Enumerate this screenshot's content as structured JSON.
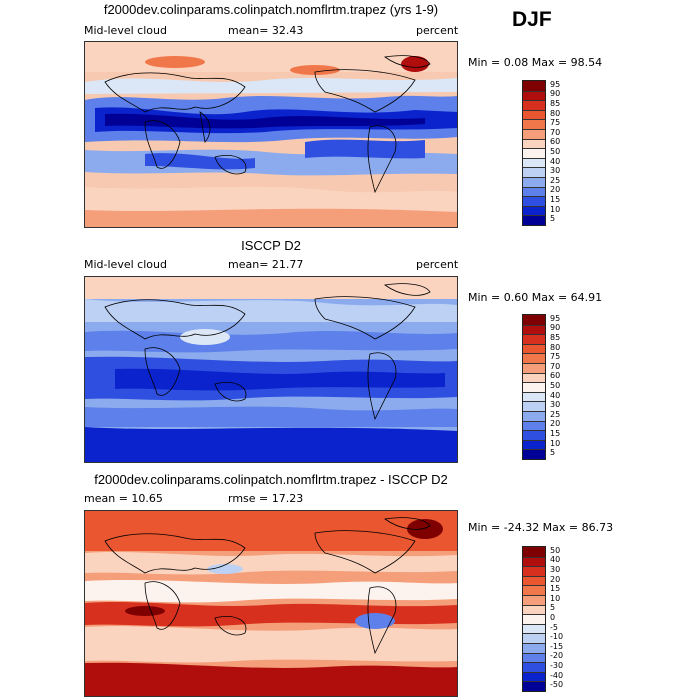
{
  "season": "DJF",
  "panels": [
    {
      "title": "f2000dev.colinparams.colinpatch.nomflrtm.trapez (yrs 1-9)",
      "left_label": "Mid-level cloud",
      "center_label": "mean=  32.43",
      "right_label": "percent",
      "minmax": "Min =   0.08  Max =  98.54",
      "colorbar_levels": [
        "95",
        "90",
        "85",
        "80",
        "75",
        "70",
        "60",
        "50",
        "40",
        "30",
        "25",
        "20",
        "15",
        "10",
        "5"
      ],
      "colorbar_colors": [
        "#7f0000",
        "#b00d0d",
        "#d8301e",
        "#e9562f",
        "#f0774a",
        "#f59e7a",
        "#fbd4c0",
        "#fdf3ee",
        "#dbe7f7",
        "#bcd1f4",
        "#8cabee",
        "#5d80ea",
        "#2f4fe0",
        "#0a23cc",
        "#000096"
      ]
    },
    {
      "title": "ISCCP D2",
      "left_label": "Mid-level cloud",
      "center_label": "mean=  21.77",
      "right_label": "percent",
      "minmax": "Min =   0.60  Max =  64.91",
      "colorbar_levels": [
        "95",
        "90",
        "85",
        "80",
        "75",
        "70",
        "60",
        "50",
        "40",
        "30",
        "25",
        "20",
        "15",
        "10",
        "5"
      ],
      "colorbar_colors": [
        "#7f0000",
        "#b00d0d",
        "#d8301e",
        "#e9562f",
        "#f0774a",
        "#f59e7a",
        "#fbd4c0",
        "#fdf3ee",
        "#dbe7f7",
        "#bcd1f4",
        "#8cabee",
        "#5d80ea",
        "#2f4fe0",
        "#0a23cc",
        "#000096"
      ]
    },
    {
      "title": "f2000dev.colinparams.colinpatch.nomflrtm.trapez - ISCCP D2",
      "left_label": "mean =   10.65",
      "center_label": "rmse =   17.23",
      "right_label": "",
      "minmax": "Min = -24.32  Max =  86.73",
      "colorbar_levels": [
        "50",
        "40",
        "30",
        "20",
        "15",
        "10",
        "5",
        "0",
        "-5",
        "-10",
        "-15",
        "-20",
        "-30",
        "-40",
        "-50"
      ],
      "colorbar_colors": [
        "#7f0000",
        "#b00d0d",
        "#d8301e",
        "#e9562f",
        "#f0774a",
        "#f59e7a",
        "#fbd4c0",
        "#fdf3ee",
        "#dbe7f7",
        "#bcd1f4",
        "#8cabee",
        "#5d80ea",
        "#2f4fe0",
        "#0a23cc",
        "#000096"
      ]
    }
  ]
}
